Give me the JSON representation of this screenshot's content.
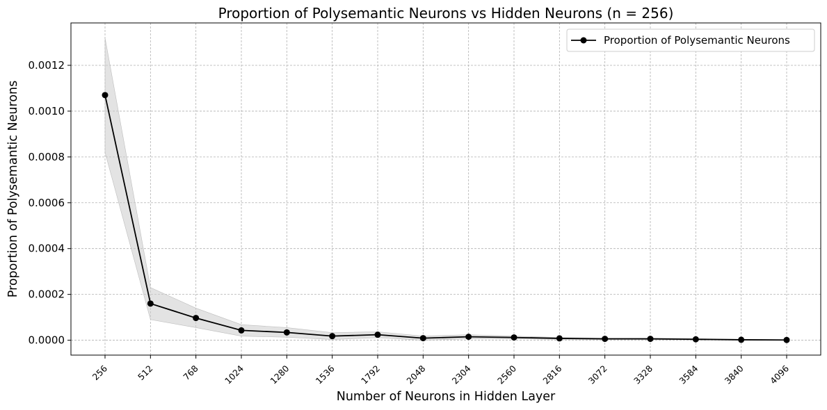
{
  "chart_data": {
    "type": "line",
    "title": "Proportion of Polysemantic Neurons vs Hidden Neurons (n = 256)",
    "xlabel": "Number of Neurons in Hidden Layer",
    "ylabel": "Proportion of Polysemantic Neurons",
    "x": [
      256,
      512,
      768,
      1024,
      1280,
      1536,
      1792,
      2048,
      2304,
      2560,
      2816,
      3072,
      3328,
      3584,
      3840,
      4096
    ],
    "x_tick_labels": [
      "256",
      "512",
      "768",
      "1024",
      "1280",
      "1536",
      "1792",
      "2048",
      "2304",
      "2560",
      "2816",
      "3072",
      "3328",
      "3584",
      "3840",
      "4096"
    ],
    "y_ticks": [
      0.0,
      0.0002,
      0.0004,
      0.0006,
      0.0008,
      0.001,
      0.0012
    ],
    "y_tick_labels": [
      "0.0000",
      "0.0002",
      "0.0004",
      "0.0006",
      "0.0008",
      "0.0010",
      "0.0012"
    ],
    "ylim": [
      -6.5e-05,
      0.001385
    ],
    "xlim": [
      -0.75,
      15.75
    ],
    "grid": true,
    "legend_position": "top-right",
    "series": [
      {
        "name": "Proportion of Polysemantic Neurons",
        "color": "#000000",
        "marker": "circle",
        "values": [
          0.00107,
          0.00016,
          9.7e-05,
          4.3e-05,
          3.4e-05,
          1.8e-05,
          2.4e-05,
          9e-06,
          1.5e-05,
          1.2e-05,
          8e-06,
          6e-06,
          6e-06,
          4e-06,
          2e-06,
          1e-06
        ],
        "band_upper": [
          0.00132,
          0.00023,
          0.00014,
          6.8e-05,
          5.5e-05,
          3.3e-05,
          3.7e-05,
          1.8e-05,
          2.4e-05,
          1.8e-05,
          1.2e-05,
          9e-06,
          9e-06,
          7e-06,
          4e-06,
          2e-06
        ],
        "band_lower": [
          0.00082,
          9e-05,
          5.5e-05,
          1.8e-05,
          1.3e-05,
          3e-06,
          1.1e-05,
          0.0,
          6e-06,
          6e-06,
          4e-06,
          3e-06,
          3e-06,
          1e-06,
          0.0,
          0.0
        ],
        "band_color": "#cccccc"
      }
    ]
  }
}
